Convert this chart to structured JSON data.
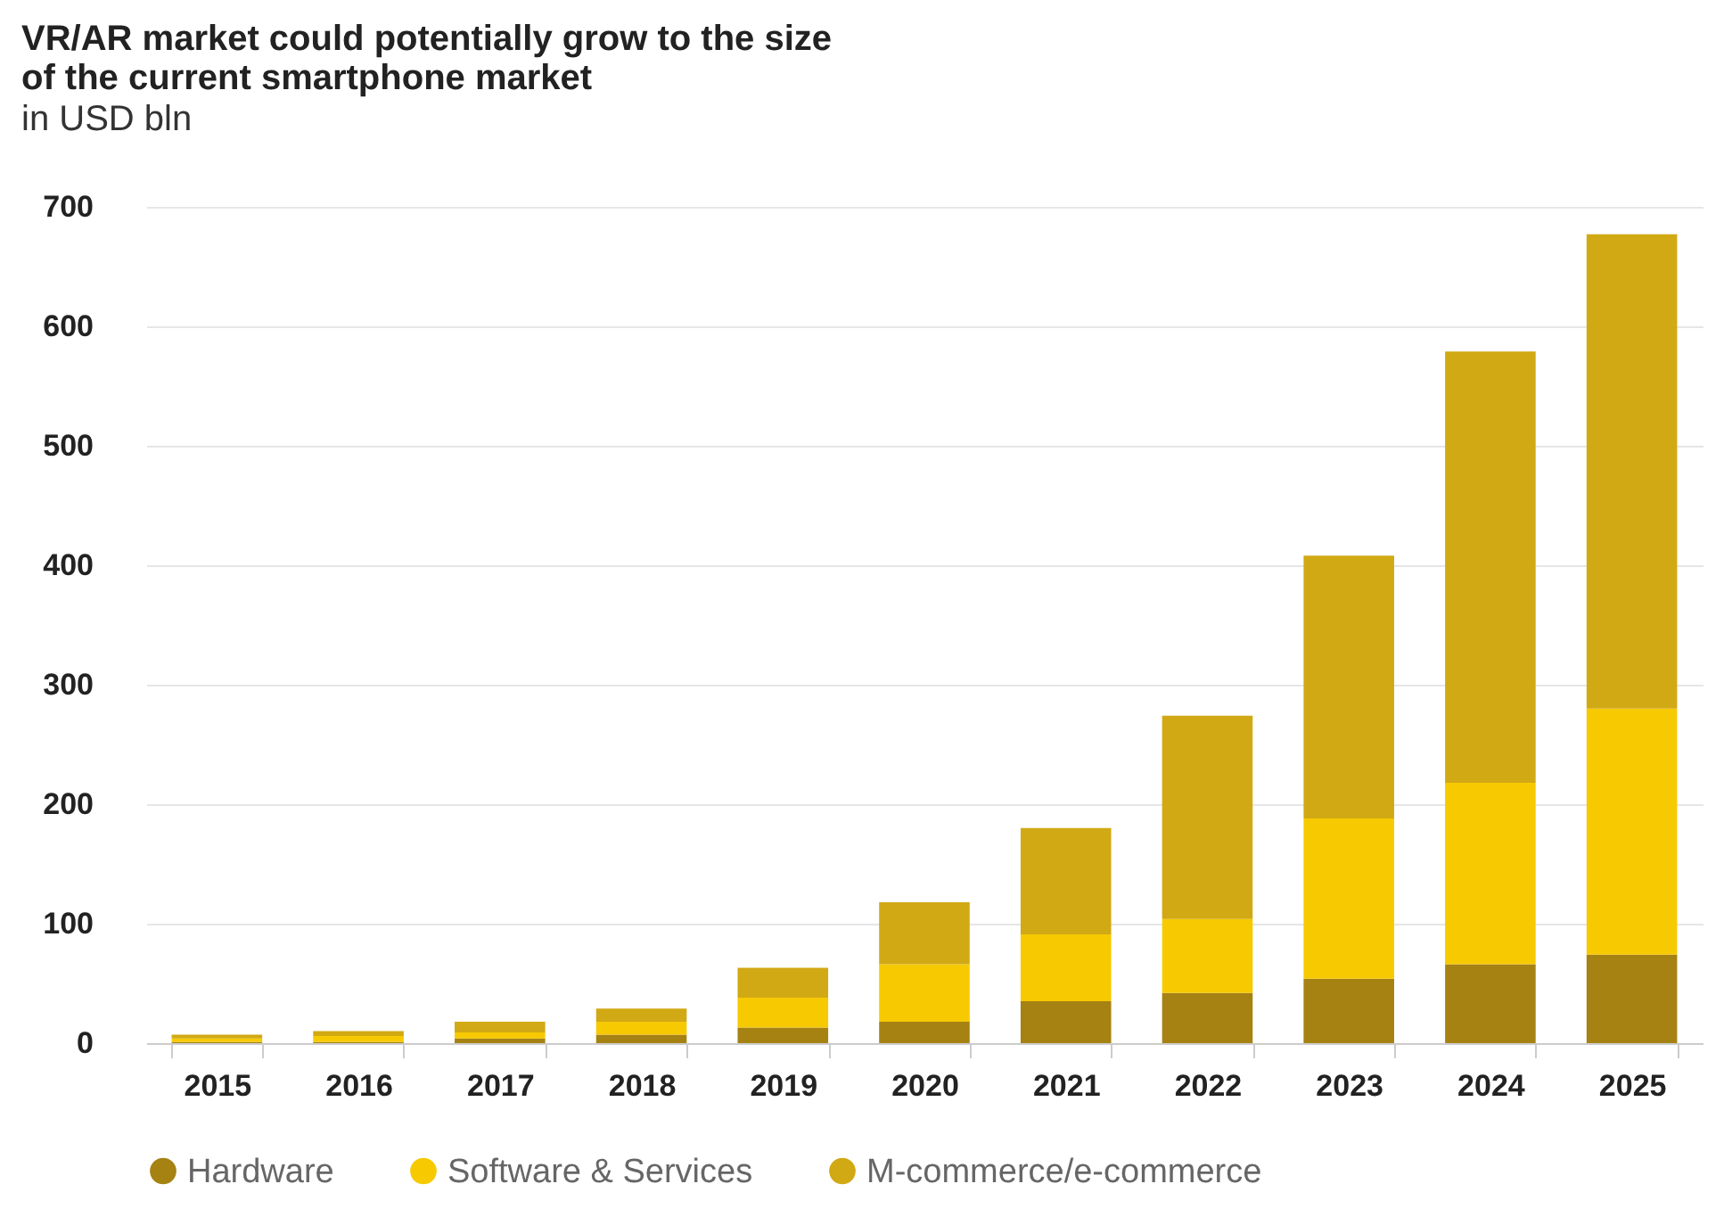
{
  "chart_data": {
    "type": "bar",
    "title": [
      "VR/AR market could potentially grow to the size",
      "of the current smartphone market"
    ],
    "subtitle": "in USD bln",
    "categories": [
      "2015",
      "2016",
      "2017",
      "2018",
      "2019",
      "2020",
      "2021",
      "2022",
      "2023",
      "2024",
      "2025"
    ],
    "stacked": true,
    "series": [
      {
        "name": "Hardware",
        "color": "#a58212",
        "values": [
          1,
          1,
          4,
          7,
          13,
          18,
          35,
          42,
          54,
          66,
          74
        ]
      },
      {
        "name": "Software & Services",
        "color": "#f7c900",
        "values": [
          3,
          5,
          5,
          11,
          25,
          48,
          56,
          62,
          134,
          152,
          206
        ]
      },
      {
        "name": "M-commerce/e-commerce",
        "color": "#d1a914",
        "values": [
          3,
          4,
          9,
          11,
          25,
          52,
          89,
          170,
          220,
          361,
          397
        ]
      }
    ],
    "ylim": [
      0,
      700
    ],
    "yticks": [
      0,
      100,
      200,
      300,
      400,
      500,
      600,
      700
    ],
    "grid": "y",
    "legend": "bottom"
  }
}
